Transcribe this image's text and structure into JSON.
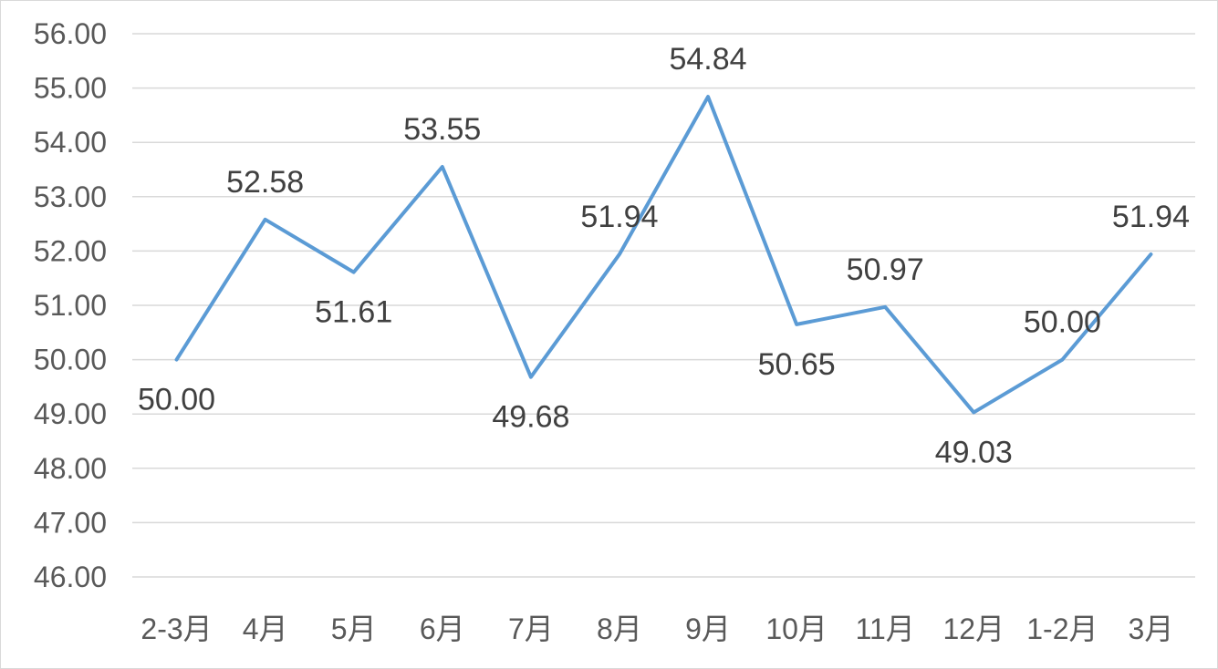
{
  "chart_data": {
    "type": "line",
    "title": "",
    "xlabel": "",
    "ylabel": "",
    "categories": [
      "2-3月",
      "4月",
      "5月",
      "6月",
      "7月",
      "8月",
      "9月",
      "10月",
      "11月",
      "12月",
      "1-2月",
      "3月"
    ],
    "series": [
      {
        "values": [
          50.0,
          52.58,
          51.61,
          53.55,
          49.68,
          51.94,
          54.84,
          50.65,
          50.97,
          49.03,
          50.0,
          51.94
        ],
        "color": "#5b9bd5",
        "data_labels": [
          "50.00",
          "52.58",
          "51.61",
          "53.55",
          "49.68",
          "51.94",
          "54.84",
          "50.65",
          "50.97",
          "49.03",
          "50.00",
          "51.94"
        ]
      }
    ],
    "ylim": [
      46,
      56
    ],
    "yticks": [
      "46.00",
      "47.00",
      "48.00",
      "49.00",
      "50.00",
      "51.00",
      "52.00",
      "53.00",
      "54.00",
      "55.00",
      "56.00"
    ],
    "grid": true,
    "legend": "none"
  }
}
